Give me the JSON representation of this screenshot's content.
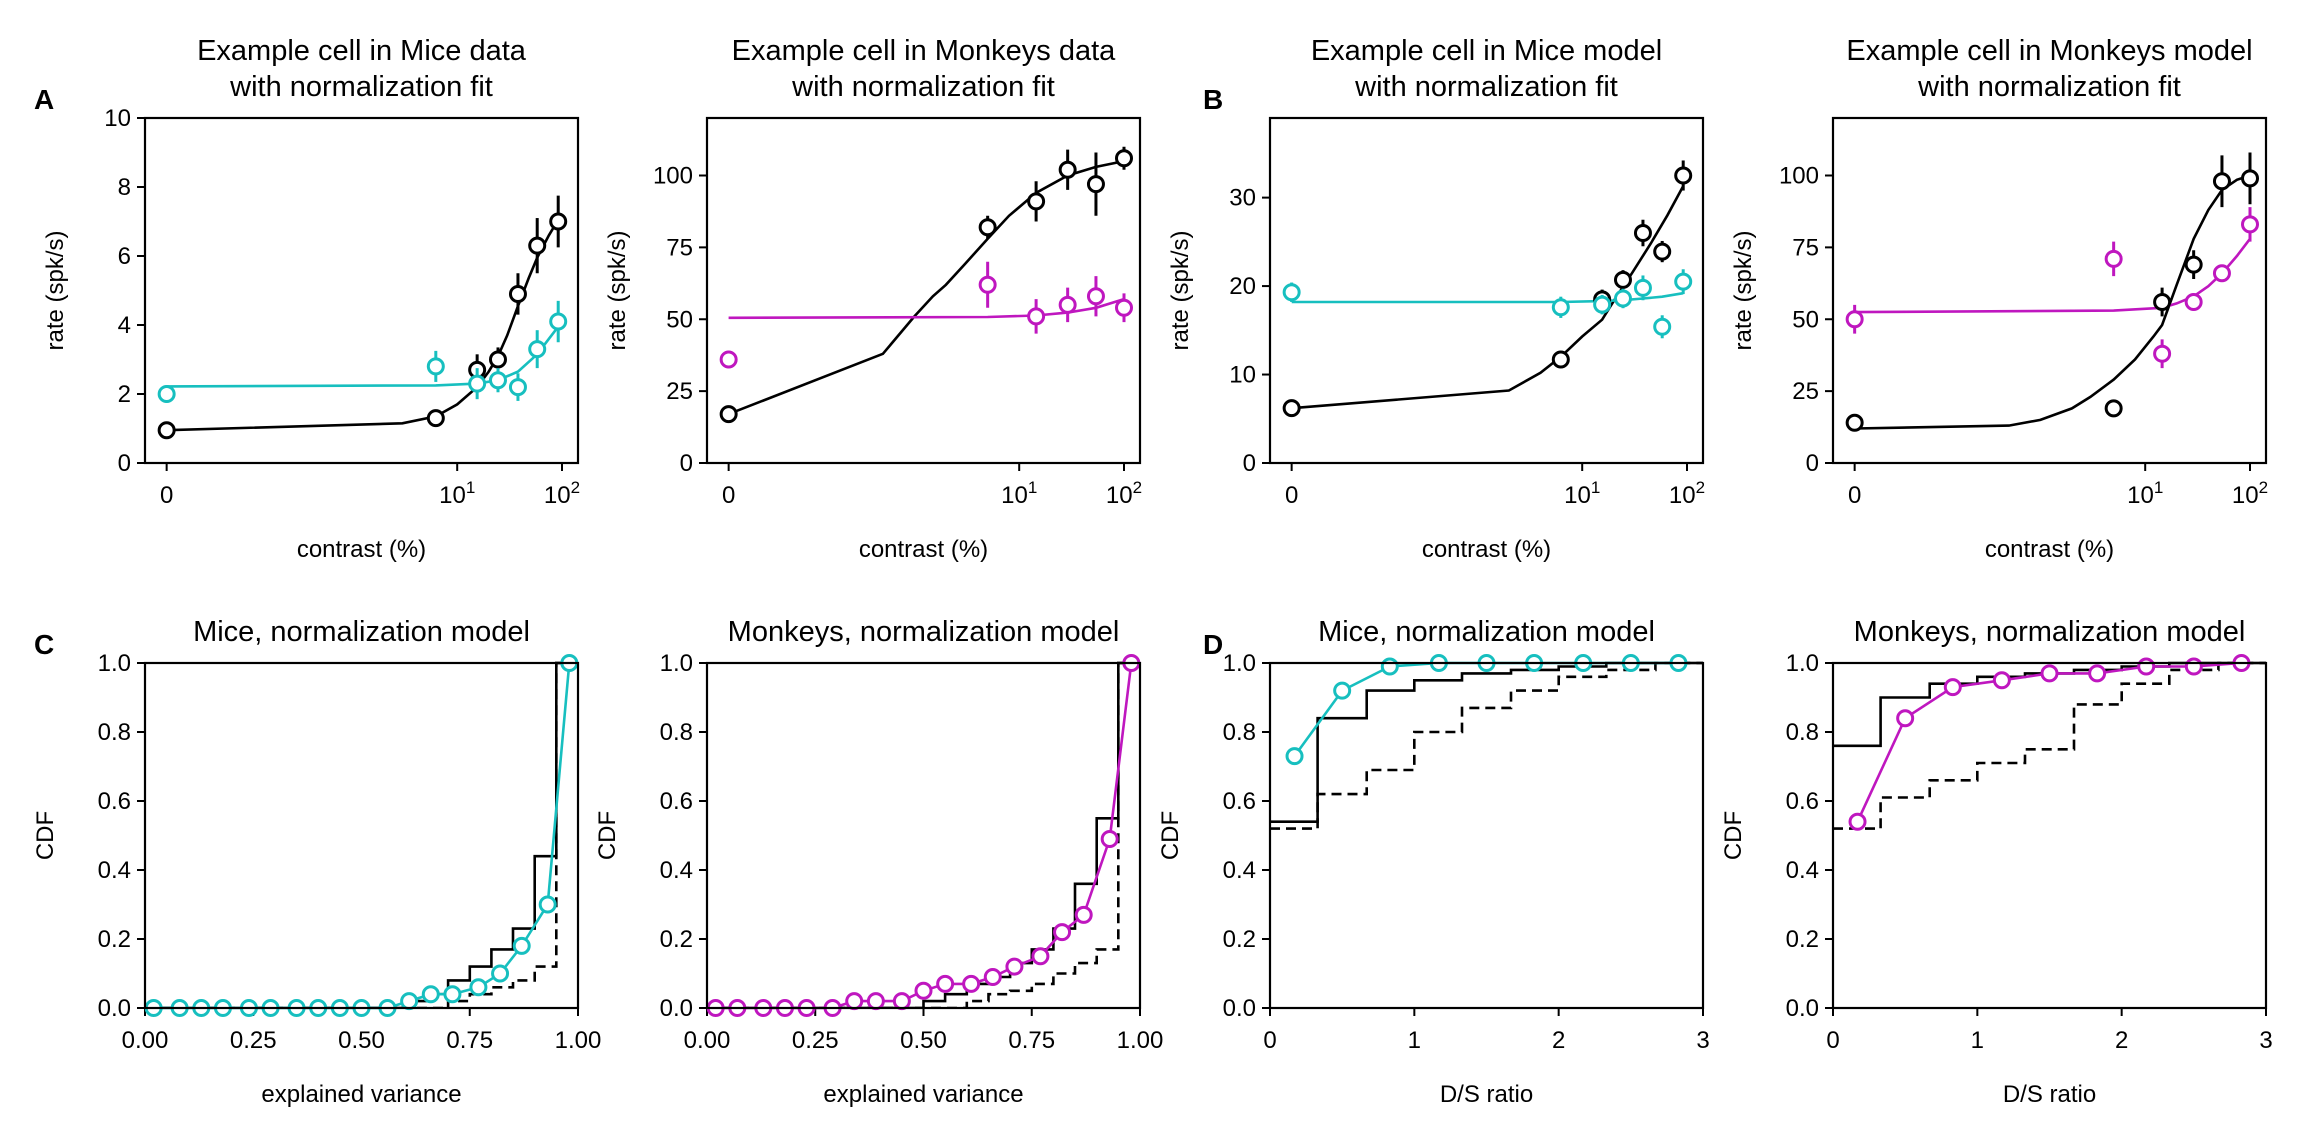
{
  "panel_letters": [
    "A",
    "B",
    "C",
    "D"
  ],
  "chart_data": [
    {
      "type": "line",
      "title": "Example cell in Mice data\nwith normalization fit",
      "xlabel": "contrast (%)",
      "ylabel": "rate (spk/s)",
      "x_scale": "symlog",
      "xticks": [
        "0",
        "10^1",
        "10^2"
      ],
      "ylim": [
        0,
        10
      ],
      "yticks": [
        0,
        2,
        4,
        6,
        8,
        10
      ],
      "colors": {
        "s1": "#000000",
        "s2": "#17bfbf"
      },
      "points": {
        "s1": {
          "x": [
            0,
            6.25,
            15.5,
            24.5,
            38,
            58,
            92
          ],
          "y": [
            0.95,
            1.3,
            2.7,
            3.0,
            4.9,
            6.3,
            7.0
          ],
          "err": [
            0.12,
            0.25,
            0.45,
            0.35,
            0.6,
            0.8,
            0.75
          ]
        },
        "s2": {
          "x": [
            0,
            6.25,
            15.5,
            24.5,
            38,
            58,
            92
          ],
          "y": [
            2.0,
            2.8,
            2.3,
            2.4,
            2.2,
            3.3,
            4.1
          ],
          "err": [
            0.25,
            0.45,
            0.45,
            0.35,
            0.4,
            0.55,
            0.6
          ]
        }
      },
      "fit": {
        "s1": {
          "x": [
            0,
            3,
            6.25,
            10,
            15.5,
            20,
            24.5,
            30,
            38,
            48,
            58,
            75,
            92
          ],
          "y": [
            0.95,
            1.15,
            1.35,
            1.7,
            2.2,
            2.65,
            3.1,
            3.7,
            4.55,
            5.35,
            5.95,
            6.6,
            7.05
          ]
        },
        "s2": {
          "x": [
            0,
            6.25,
            15.5,
            24.5,
            38,
            58,
            75,
            92
          ],
          "y": [
            2.22,
            2.25,
            2.3,
            2.4,
            2.65,
            3.15,
            3.6,
            3.95
          ]
        }
      }
    },
    {
      "type": "line",
      "title": "Example cell in Monkeys data\nwith normalization fit",
      "xlabel": "contrast (%)",
      "ylabel": "rate (spk/s)",
      "x_scale": "symlog",
      "xticks": [
        "0",
        "10^1",
        "10^2"
      ],
      "ylim": [
        0,
        120
      ],
      "yticks": [
        0,
        25,
        50,
        75,
        100
      ],
      "colors": {
        "s1": "#000000",
        "s2": "#bf17bf"
      },
      "points": {
        "s1": {
          "x": [
            0,
            5,
            14.5,
            29,
            54,
            100
          ],
          "y": [
            17,
            82,
            91,
            102,
            97,
            106
          ],
          "err": [
            2,
            4,
            7,
            7,
            11,
            4
          ]
        },
        "s2": {
          "x": [
            0,
            5,
            14.5,
            29,
            54,
            100
          ],
          "y": [
            36,
            62,
            51,
            55,
            58,
            54
          ],
          "err": [
            3,
            8,
            6,
            6,
            7,
            5
          ]
        }
      },
      "fit": {
        "s1": {
          "x": [
            0,
            0.5,
            1,
            1.5,
            2,
            3,
            5,
            8,
            14.5,
            29,
            54,
            100
          ],
          "y": [
            17,
            38,
            51,
            58,
            62,
            69,
            78,
            86,
            94,
            100,
            103,
            105
          ]
        },
        "s2": {
          "x": [
            0,
            5,
            14.5,
            29,
            54,
            100
          ],
          "y": [
            50.5,
            50.8,
            51.3,
            52.3,
            54,
            57
          ]
        }
      }
    },
    {
      "type": "line",
      "title": "Example cell in Mice model\nwith normalization fit",
      "xlabel": "contrast (%)",
      "ylabel": "rate (spk/s)",
      "x_scale": "symlog",
      "xticks": [
        "0",
        "10^1",
        "10^2"
      ],
      "ylim": [
        0,
        39
      ],
      "yticks": [
        0,
        10,
        20,
        30
      ],
      "colors": {
        "s1": "#000000",
        "s2": "#17bfbf"
      },
      "points": {
        "s1": {
          "x": [
            0,
            6.25,
            15.5,
            24.5,
            38,
            58,
            92
          ],
          "y": [
            6.2,
            11.7,
            18.5,
            20.7,
            26,
            23.9,
            32.5
          ],
          "err": [
            0.6,
            0.7,
            1.1,
            1.1,
            1.5,
            1.2,
            1.7
          ]
        },
        "s2": {
          "x": [
            0,
            6.25,
            15.5,
            24.5,
            38,
            58,
            92
          ],
          "y": [
            19.3,
            17.6,
            17.9,
            18.6,
            19.8,
            15.4,
            20.5
          ],
          "err": [
            1.1,
            1.2,
            1.1,
            1.1,
            1.4,
            1.3,
            1.4
          ]
        }
      },
      "fit": {
        "s1": {
          "x": [
            0,
            2,
            4,
            6.25,
            10,
            15.5,
            20,
            30,
            45,
            65,
            92
          ],
          "y": [
            6.2,
            8.2,
            10.2,
            12.0,
            14.3,
            16.2,
            18.3,
            21.5,
            24.8,
            28.0,
            31.3
          ]
        },
        "s2": {
          "x": [
            0,
            6.25,
            15.5,
            24.5,
            38,
            58,
            92
          ],
          "y": [
            18.2,
            18.2,
            18.3,
            18.4,
            18.6,
            18.8,
            19.2
          ]
        }
      }
    },
    {
      "type": "line",
      "title": "Example cell in Monkeys model\nwith normalization fit",
      "xlabel": "contrast (%)",
      "ylabel": "rate (spk/s)",
      "x_scale": "symlog",
      "xticks": [
        "0",
        "10^1",
        "10^2"
      ],
      "ylim": [
        0,
        120
      ],
      "yticks": [
        0,
        25,
        50,
        75,
        100
      ],
      "colors": {
        "s1": "#000000",
        "s2": "#bf17bf"
      },
      "points": {
        "s1": {
          "x": [
            0,
            5,
            14.5,
            29,
            54,
            100
          ],
          "y": [
            14,
            19,
            56,
            69,
            98,
            99
          ],
          "err": [
            2,
            2,
            5,
            5,
            9,
            9
          ]
        },
        "s2": {
          "x": [
            0,
            5,
            14.5,
            29,
            54,
            100
          ],
          "y": [
            50,
            71,
            38,
            56,
            66,
            83
          ],
          "err": [
            5,
            6,
            5,
            3,
            3,
            6
          ]
        }
      },
      "fit": {
        "s1": {
          "x": [
            0,
            0.5,
            1,
            2,
            3,
            5,
            8,
            12,
            14.5,
            20,
            29,
            40,
            54,
            75,
            100
          ],
          "y": [
            12,
            13,
            15,
            19,
            23,
            29,
            36,
            44,
            48,
            62,
            78,
            88,
            95,
            98.5,
            100
          ]
        },
        "s2": {
          "x": [
            0,
            5,
            14.5,
            20,
            29,
            40,
            54,
            75,
            100
          ],
          "y": [
            52.5,
            53,
            54,
            55.5,
            58,
            61.5,
            66,
            72,
            78
          ]
        }
      }
    },
    {
      "type": "line",
      "title": "Mice, normalization model",
      "xlabel": "explained variance",
      "ylabel": "CDF",
      "xlim": [
        0,
        1
      ],
      "ylim": [
        0,
        1
      ],
      "xticks": [
        "0.00",
        "0.25",
        "0.50",
        "0.75",
        "1.00"
      ],
      "yticks": [
        "0.0",
        "0.2",
        "0.4",
        "0.6",
        "0.8",
        "1.0"
      ],
      "steps": [
        {
          "style": "solid",
          "x": [
            0,
            0.6,
            0.65,
            0.7,
            0.75,
            0.8,
            0.85,
            0.9,
            0.95,
            1.0
          ],
          "y": [
            0,
            0.02,
            0.04,
            0.08,
            0.12,
            0.17,
            0.23,
            0.44,
            1.0,
            1.0
          ]
        },
        {
          "style": "dashed",
          "x": [
            0,
            0.7,
            0.75,
            0.8,
            0.85,
            0.9,
            0.95,
            1.0
          ],
          "y": [
            0,
            0.02,
            0.04,
            0.06,
            0.08,
            0.12,
            1.0,
            1.0
          ]
        }
      ],
      "series": [
        {
          "color": "#17bfbf",
          "x": [
            0.02,
            0.08,
            0.13,
            0.18,
            0.24,
            0.29,
            0.35,
            0.4,
            0.45,
            0.5,
            0.56,
            0.61,
            0.66,
            0.71,
            0.77,
            0.82,
            0.87,
            0.93,
            0.98
          ],
          "y": [
            0,
            0,
            0,
            0,
            0,
            0,
            0,
            0,
            0,
            0,
            0,
            0.02,
            0.04,
            0.04,
            0.06,
            0.1,
            0.18,
            0.3,
            1.0
          ]
        }
      ]
    },
    {
      "type": "line",
      "title": "Monkeys, normalization model",
      "xlabel": "explained variance",
      "ylabel": "CDF",
      "xlim": [
        0,
        1
      ],
      "ylim": [
        0,
        1
      ],
      "xticks": [
        "0.00",
        "0.25",
        "0.50",
        "0.75",
        "1.00"
      ],
      "yticks": [
        "0.0",
        "0.2",
        "0.4",
        "0.6",
        "0.8",
        "1.0"
      ],
      "steps": [
        {
          "style": "solid",
          "x": [
            0,
            0.5,
            0.55,
            0.6,
            0.65,
            0.7,
            0.75,
            0.8,
            0.85,
            0.9,
            0.95,
            1.0
          ],
          "y": [
            0,
            0.02,
            0.04,
            0.07,
            0.09,
            0.13,
            0.17,
            0.23,
            0.36,
            0.55,
            1.0,
            1.0
          ]
        },
        {
          "style": "dashed",
          "x": [
            0,
            0.6,
            0.65,
            0.7,
            0.75,
            0.8,
            0.85,
            0.9,
            0.95,
            1.0
          ],
          "y": [
            0,
            0.02,
            0.04,
            0.05,
            0.07,
            0.1,
            0.13,
            0.17,
            1.0,
            1.0
          ]
        }
      ],
      "series": [
        {
          "color": "#bf17bf",
          "x": [
            0.02,
            0.07,
            0.13,
            0.18,
            0.23,
            0.29,
            0.34,
            0.39,
            0.45,
            0.5,
            0.55,
            0.61,
            0.66,
            0.71,
            0.77,
            0.82,
            0.87,
            0.93,
            0.98
          ],
          "y": [
            0,
            0,
            0,
            0,
            0,
            0,
            0.02,
            0.02,
            0.02,
            0.05,
            0.07,
            0.07,
            0.09,
            0.12,
            0.15,
            0.22,
            0.27,
            0.49,
            1.0
          ]
        }
      ]
    },
    {
      "type": "line",
      "title": "Mice, normalization model",
      "xlabel": "D/S ratio",
      "ylabel": "CDF",
      "xlim": [
        0,
        3
      ],
      "ylim": [
        0,
        1
      ],
      "xticks": [
        "0",
        "1",
        "2",
        "3"
      ],
      "yticks": [
        "0.0",
        "0.2",
        "0.4",
        "0.6",
        "0.8",
        "1.0"
      ],
      "steps": [
        {
          "style": "solid",
          "x": [
            0,
            0.33,
            0.67,
            1.0,
            1.33,
            1.67,
            2.0,
            2.33,
            2.67,
            3.0
          ],
          "y": [
            0.54,
            0.84,
            0.92,
            0.95,
            0.97,
            0.98,
            0.99,
            1.0,
            1.0,
            1.0
          ]
        },
        {
          "style": "dashed",
          "x": [
            0,
            0.33,
            0.67,
            1.0,
            1.33,
            1.67,
            2.0,
            2.33,
            2.67,
            3.0
          ],
          "y": [
            0.52,
            0.62,
            0.69,
            0.8,
            0.87,
            0.92,
            0.96,
            0.98,
            1.0,
            1.0
          ]
        }
      ],
      "series": [
        {
          "color": "#17bfbf",
          "x": [
            0.17,
            0.5,
            0.83,
            1.17,
            1.5,
            1.83,
            2.17,
            2.5,
            2.83
          ],
          "y": [
            0.73,
            0.92,
            0.99,
            1.0,
            1.0,
            1.0,
            1.0,
            1.0,
            1.0
          ]
        }
      ]
    },
    {
      "type": "line",
      "title": "Monkeys, normalization model",
      "xlabel": "D/S ratio",
      "ylabel": "CDF",
      "xlim": [
        0,
        3
      ],
      "ylim": [
        0,
        1
      ],
      "xticks": [
        "0",
        "1",
        "2",
        "3"
      ],
      "yticks": [
        "0.0",
        "0.2",
        "0.4",
        "0.6",
        "0.8",
        "1.0"
      ],
      "steps": [
        {
          "style": "solid",
          "x": [
            0,
            0.33,
            0.67,
            1.0,
            1.33,
            1.67,
            2.0,
            2.33,
            2.67,
            3.0
          ],
          "y": [
            0.76,
            0.9,
            0.94,
            0.96,
            0.97,
            0.98,
            0.99,
            1.0,
            1.0,
            1.0
          ]
        },
        {
          "style": "dashed",
          "x": [
            0,
            0.33,
            0.67,
            1.0,
            1.33,
            1.67,
            2.0,
            2.33,
            2.67,
            3.0
          ],
          "y": [
            0.52,
            0.61,
            0.66,
            0.71,
            0.75,
            0.88,
            0.94,
            0.98,
            1.0,
            1.0
          ]
        }
      ],
      "series": [
        {
          "color": "#bf17bf",
          "x": [
            0.17,
            0.5,
            0.83,
            1.17,
            1.5,
            1.83,
            2.17,
            2.5,
            2.83
          ],
          "y": [
            0.54,
            0.84,
            0.93,
            0.95,
            0.97,
            0.97,
            0.99,
            0.99,
            1.0
          ]
        }
      ]
    }
  ]
}
